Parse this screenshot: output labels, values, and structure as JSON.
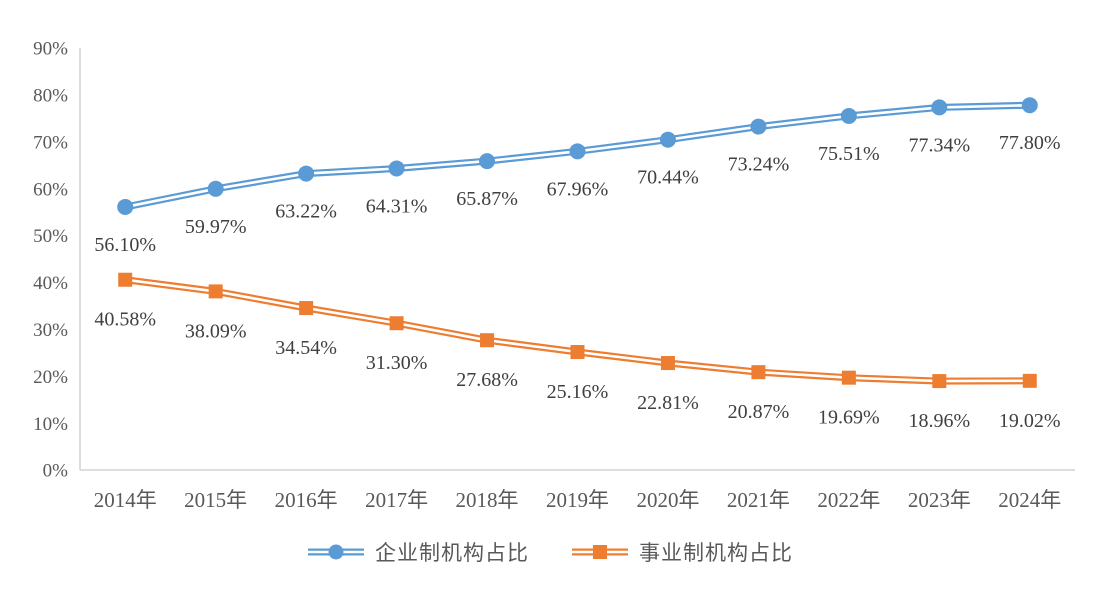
{
  "chart_data": {
    "type": "line",
    "title": "",
    "categories": [
      "2014年",
      "2015年",
      "2016年",
      "2017年",
      "2018年",
      "2019年",
      "2020年",
      "2021年",
      "2022年",
      "2023年",
      "2024年"
    ],
    "series": [
      {
        "name": "企业制机构占比",
        "color": "#5B9BD5",
        "marker": "circle",
        "line_style": "double",
        "values": [
          56.1,
          59.97,
          63.22,
          64.31,
          65.87,
          67.96,
          70.44,
          73.24,
          75.51,
          77.34,
          77.8
        ]
      },
      {
        "name": "事业制机构占比",
        "color": "#ED7D31",
        "marker": "square",
        "line_style": "double",
        "values": [
          40.58,
          38.09,
          34.54,
          31.3,
          27.68,
          25.16,
          22.81,
          20.87,
          19.69,
          18.96,
          19.02
        ]
      }
    ],
    "ylim": [
      0,
      90
    ],
    "ytick_step": 10,
    "ytick_suffix": "%",
    "data_label_suffix": "%",
    "grid": false,
    "legend_position": "bottom",
    "colors": {
      "axis_line": "#D9D9D9",
      "tick_text": "#595959",
      "data_label_text": "#404040",
      "background": "#FFFFFF"
    }
  }
}
